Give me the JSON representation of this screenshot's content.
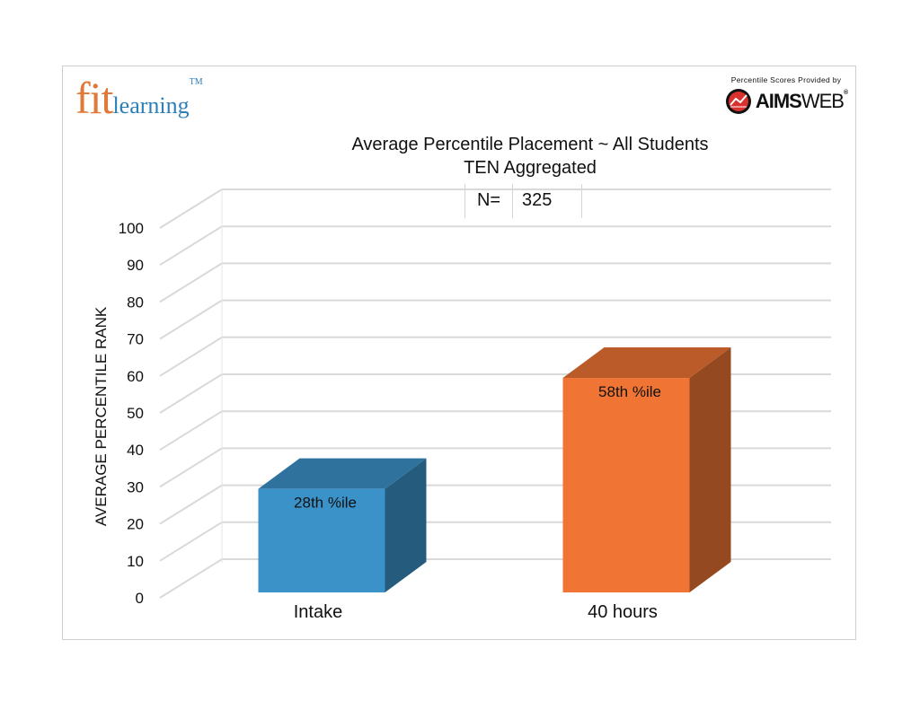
{
  "logo": {
    "fit": "fit",
    "learning": "learning",
    "tm": "TM"
  },
  "provider": {
    "provided_by": "Percentile Scores Provided by",
    "brand_bold": "AIMS",
    "brand_light": "WEB",
    "reg": "®"
  },
  "n_table": {
    "label": "N=",
    "value": "325"
  },
  "chart_data": {
    "type": "bar",
    "title": "Average Percentile Placement ~ All Students",
    "subtitle": "TEN Aggregated",
    "ylabel": "AVERAGE PERCENTILE RANK",
    "xlabel": "",
    "ylim": [
      0,
      100
    ],
    "yticks": [
      0,
      10,
      20,
      30,
      40,
      50,
      60,
      70,
      80,
      90,
      100
    ],
    "grid": true,
    "categories": [
      "Intake",
      "40 hours"
    ],
    "values": [
      28,
      58
    ],
    "data_labels": [
      "28th %ile",
      "58th %ile"
    ],
    "colors": [
      "#3b92c9",
      "#f07534"
    ]
  }
}
